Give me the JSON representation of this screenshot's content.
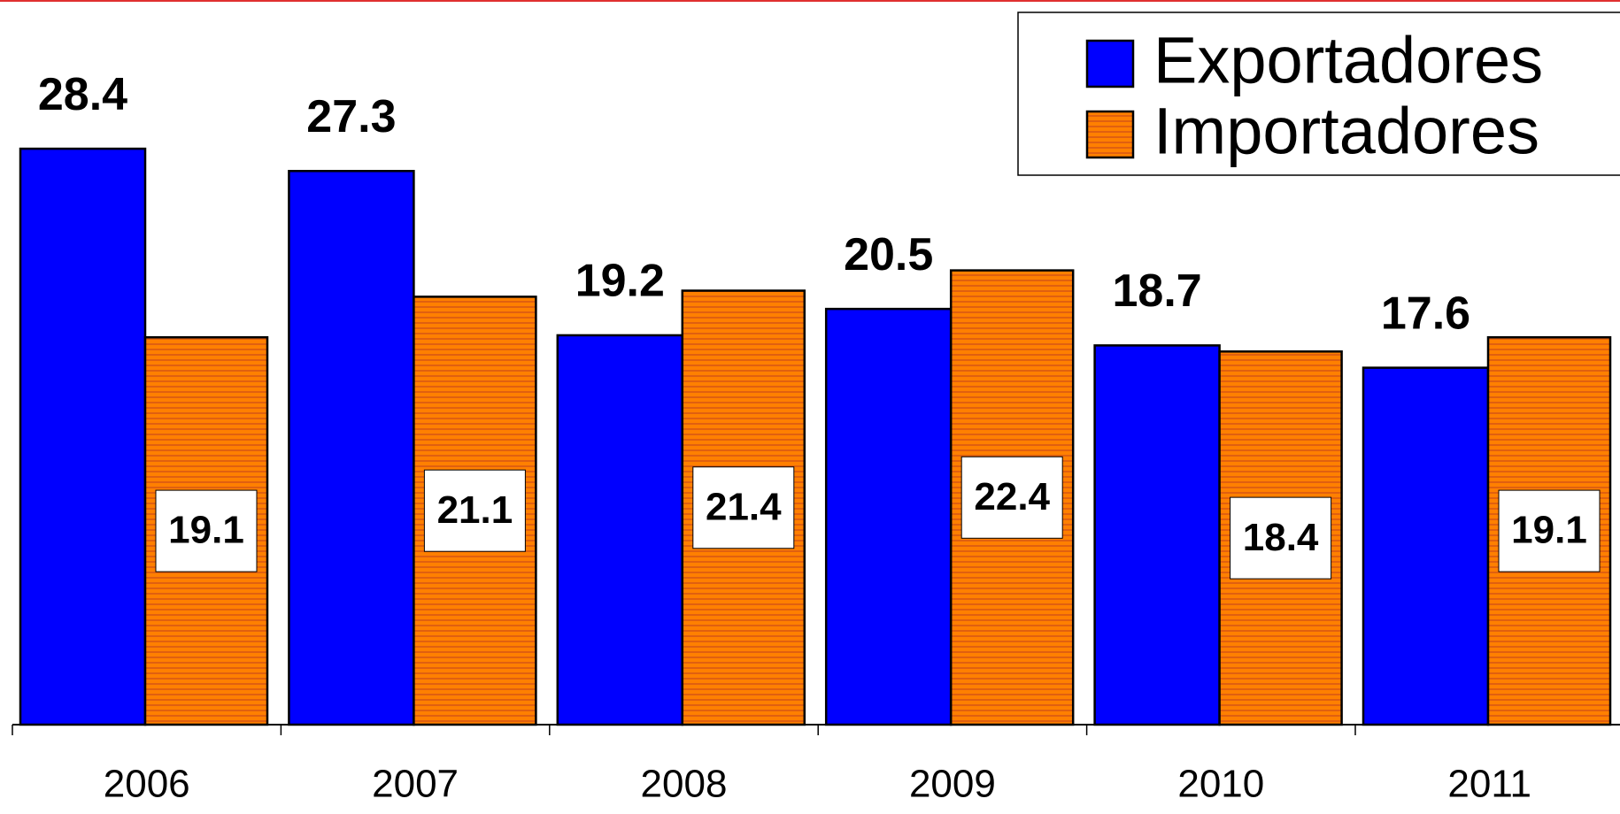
{
  "chart_data": {
    "type": "bar",
    "categories": [
      "2006",
      "2007",
      "2008",
      "2009",
      "2010",
      "2011"
    ],
    "series": [
      {
        "name": "Exportadores",
        "color": "#0000ff",
        "values": [
          28.4,
          27.3,
          19.2,
          20.5,
          18.7,
          17.6
        ]
      },
      {
        "name": "Importadores",
        "color": "#ff8000",
        "values": [
          19.1,
          21.1,
          21.4,
          22.4,
          18.4,
          19.1
        ]
      }
    ]
  }
}
